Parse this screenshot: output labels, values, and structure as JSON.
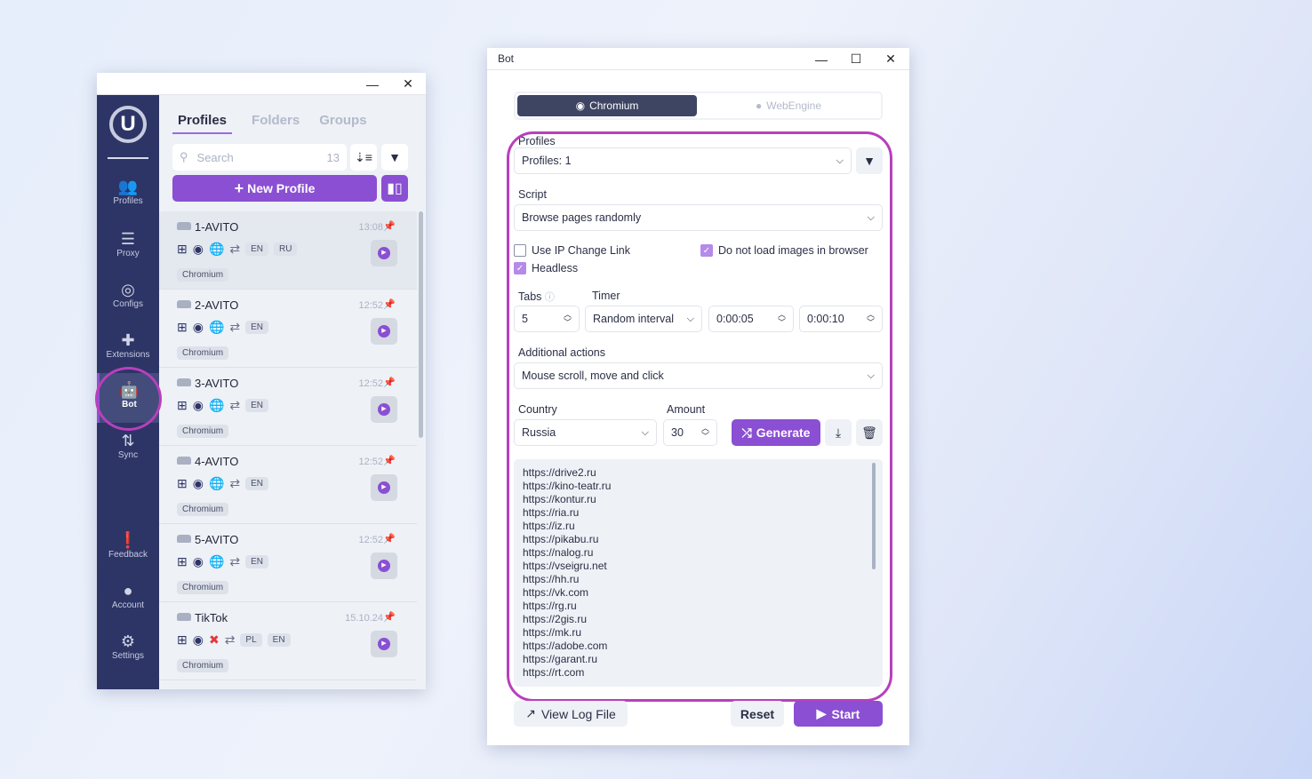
{
  "left_window": {
    "sidebar": {
      "items": [
        {
          "label": "Profiles",
          "icon": "users-gear-icon"
        },
        {
          "label": "Proxy",
          "icon": "server-icon"
        },
        {
          "label": "Configs",
          "icon": "fingerprint-icon"
        },
        {
          "label": "Extensions",
          "icon": "puzzle-icon"
        },
        {
          "label": "Bot",
          "icon": "robot-icon",
          "active": true
        },
        {
          "label": "Sync",
          "icon": "sync-icon"
        },
        {
          "label": "Feedback",
          "icon": "feedback-icon"
        },
        {
          "label": "Account",
          "icon": "account-icon"
        },
        {
          "label": "Settings",
          "icon": "gear-icon"
        }
      ]
    },
    "tabs": [
      "Profiles",
      "Folders",
      "Groups"
    ],
    "search": {
      "placeholder": "Search",
      "count": "13"
    },
    "new_profile_label": "New Profile",
    "profiles": [
      {
        "name": "1-AVITO",
        "time": "13:08",
        "langs": [
          "EN",
          "RU"
        ],
        "browser": "Chromium",
        "proxy_error": false
      },
      {
        "name": "2-AVITO",
        "time": "12:52",
        "langs": [
          "EN"
        ],
        "browser": "Chromium",
        "proxy_error": false
      },
      {
        "name": "3-AVITO",
        "time": "12:52",
        "langs": [
          "EN"
        ],
        "browser": "Chromium",
        "proxy_error": false
      },
      {
        "name": "4-AVITO",
        "time": "12:52",
        "langs": [
          "EN"
        ],
        "browser": "Chromium",
        "proxy_error": false
      },
      {
        "name": "5-AVITO",
        "time": "12:52",
        "langs": [
          "EN"
        ],
        "browser": "Chromium",
        "proxy_error": false
      },
      {
        "name": "TikTok",
        "time": "15.10.24",
        "langs": [
          "PL",
          "EN"
        ],
        "browser": "Chromium",
        "proxy_error": true
      }
    ]
  },
  "bot_window": {
    "title": "Bot",
    "engines": [
      "Chromium",
      "WebEngine"
    ],
    "profiles_label": "Profiles",
    "profiles_value": "Profiles: 1",
    "script_label": "Script",
    "script_value": "Browse pages randomly",
    "use_ip_change": {
      "label": "Use IP Change Link",
      "checked": false
    },
    "no_images": {
      "label": "Do not load images in browser",
      "checked": true
    },
    "headless": {
      "label": "Headless",
      "checked": true
    },
    "tabs_label": "Tabs",
    "tabs_value": "5",
    "timer_label": "Timer",
    "timer_mode": "Random interval",
    "timer_min": "0:00:05",
    "timer_max": "0:00:10",
    "additional_label": "Additional actions",
    "additional_value": "Mouse scroll, move and click",
    "country_label": "Country",
    "country_value": "Russia",
    "amount_label": "Amount",
    "amount_value": "30",
    "generate_label": "Generate",
    "urls": [
      "https://drive2.ru",
      "https://kino-teatr.ru",
      "https://kontur.ru",
      "https://ria.ru",
      "https://iz.ru",
      "https://pikabu.ru",
      "https://nalog.ru",
      "https://vseigru.net",
      "https://hh.ru",
      "https://vk.com",
      "https://rg.ru",
      "https://2gis.ru",
      "https://mk.ru",
      "https://adobe.com",
      "https://garant.ru",
      "https://rt.com"
    ],
    "view_log_label": "View Log File",
    "reset_label": "Reset",
    "start_label": "Start"
  },
  "colors": {
    "accent": "#8a4fd3",
    "sidebar": "#2d3566",
    "highlight": "#b93fbc"
  }
}
